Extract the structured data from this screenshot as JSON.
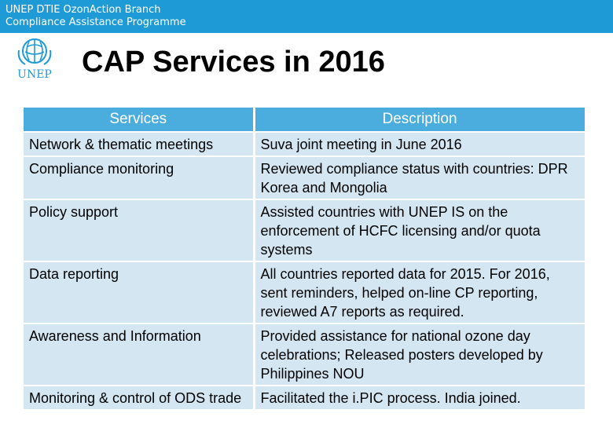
{
  "header": {
    "line1": "UNEP DTIE OzonAction Branch",
    "line2": "Compliance Assistance Programme"
  },
  "logo": {
    "text": "UNEP",
    "icon": "unep-logo-icon"
  },
  "title": "CAP Services in 2016",
  "table": {
    "headers": [
      "Services",
      "Description"
    ],
    "rows": [
      [
        "Network & thematic meetings",
        "Suva joint meeting in June 2016"
      ],
      [
        "Compliance monitoring",
        "Reviewed compliance status with countries: DPR Korea and Mongolia"
      ],
      [
        "Policy support",
        "Assisted countries with UNEP IS on the enforcement of HCFC licensing and/or quota systems"
      ],
      [
        "Data reporting",
        "All countries reported data for 2015. For 2016, sent reminders, helped on-line CP reporting, reviewed A7 reports as required."
      ],
      [
        "Awareness and Information",
        "Provided assistance for national ozone day celebrations; Released posters developed by Philippines NOU"
      ],
      [
        "Monitoring & control of ODS trade",
        "Facilitated the i.PIC process. India joined."
      ]
    ]
  },
  "colors": {
    "header_bar": "#1e9ad6",
    "table_header": "#4badde",
    "table_cell": "#d3e6f2",
    "logo_blue": "#1e9ad6"
  }
}
